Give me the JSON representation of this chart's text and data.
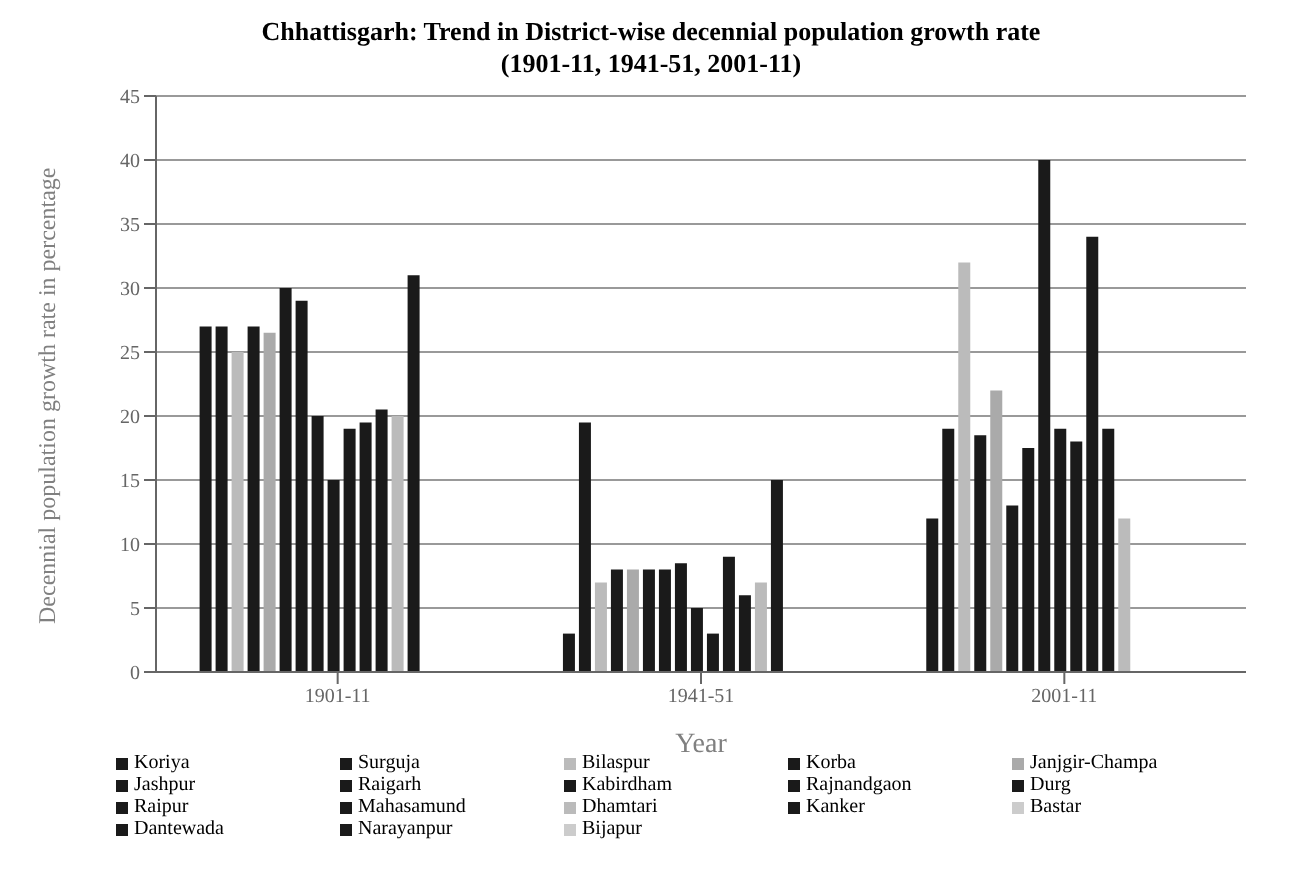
{
  "chart_data": {
    "type": "bar",
    "title": "Chhattisgarh: Trend in District-wise decennial population growth rate (1901-11, 1941-51, 2001-11)",
    "xlabel": "Year",
    "ylabel": "Decennial population growth rate in percentage",
    "categories": [
      "1901-11",
      "1941-51",
      "2001-11"
    ],
    "series": [
      {
        "name": "Koriya",
        "color": "#1a1a1a",
        "values": [
          27,
          3,
          12
        ]
      },
      {
        "name": "Surguja",
        "color": "#1a1a1a",
        "values": [
          27,
          19.5,
          19
        ]
      },
      {
        "name": "Bilaspur",
        "color": "#bbbbbb",
        "values": [
          25,
          7,
          32
        ]
      },
      {
        "name": "Korba",
        "color": "#1a1a1a",
        "values": [
          27,
          8,
          18.5
        ]
      },
      {
        "name": "Janjgir-Champa",
        "color": "#aaaaaa",
        "values": [
          26.5,
          8,
          22
        ]
      },
      {
        "name": "Jashpur",
        "color": "#1a1a1a",
        "values": [
          30,
          8,
          13
        ]
      },
      {
        "name": "Raigarh",
        "color": "#1a1a1a",
        "values": [
          29,
          8,
          17.5
        ]
      },
      {
        "name": "Kabirdham",
        "color": "#1a1a1a",
        "values": [
          20,
          8.5,
          40
        ]
      },
      {
        "name": "Rajnandgaon",
        "color": "#1a1a1a",
        "values": [
          15,
          5,
          19
        ]
      },
      {
        "name": "Durg",
        "color": "#1a1a1a",
        "values": [
          19,
          3,
          18
        ]
      },
      {
        "name": "Raipur",
        "color": "#1a1a1a",
        "values": [
          19.5,
          9,
          34
        ]
      },
      {
        "name": "Mahasamund",
        "color": "#1a1a1a",
        "values": [
          20.5,
          6,
          19
        ]
      },
      {
        "name": "Dhamtari",
        "color": "#bbbbbb",
        "values": [
          20,
          7,
          12
        ]
      },
      {
        "name": "Kanker",
        "color": "#1a1a1a",
        "values": [
          31,
          15,
          null
        ]
      },
      {
        "name": "Bastar",
        "color": "#cccccc",
        "values": [
          null,
          null,
          null
        ]
      },
      {
        "name": "Dantewada",
        "color": "#1a1a1a",
        "values": [
          null,
          null,
          null
        ]
      },
      {
        "name": "Narayanpur",
        "color": "#1a1a1a",
        "values": [
          null,
          null,
          null
        ]
      },
      {
        "name": "Bijapur",
        "color": "#cccccc",
        "values": [
          null,
          null,
          null
        ]
      }
    ],
    "ylim": [
      0,
      45
    ],
    "yticks": [
      0,
      5,
      10,
      15,
      20,
      25,
      30,
      35,
      40,
      45
    ],
    "grid": "y",
    "legend": "bottom"
  }
}
